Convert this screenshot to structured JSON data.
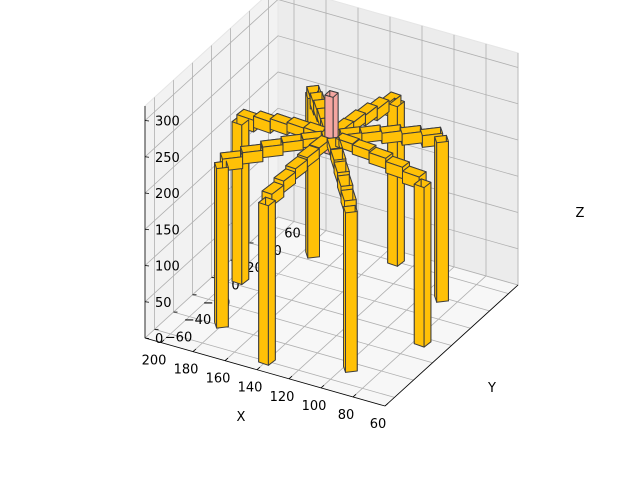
{
  "chart_data": {
    "type": "3d-bar",
    "title": "",
    "xlabel": "X",
    "ylabel": "Y",
    "zlabel": "Z",
    "xlim": [
      60,
      210
    ],
    "ylim": [
      -70,
      70
    ],
    "zlim": [
      0,
      320
    ],
    "xticks": [
      "60",
      "80",
      "100",
      "120",
      "140",
      "160",
      "180",
      "200"
    ],
    "yticks": [
      "−60",
      "−40",
      "−20",
      "0",
      "20",
      "40",
      "60"
    ],
    "zticks": [
      "0",
      "50",
      "100",
      "150",
      "200",
      "250",
      "300"
    ],
    "grid": true,
    "colors": {
      "structure": "#FFC107",
      "center_post": "#F4A6A0",
      "edge": "#3d3d3d",
      "pane": "#f2f2f2"
    },
    "legs": {
      "count": 8,
      "center": [
        135,
        0
      ],
      "foot_radius": 60,
      "knee_radius": 50,
      "leg_height": 220,
      "arm_top": 240,
      "hub_radius": 5
    },
    "center_post": {
      "x": 135,
      "y": 0,
      "z_bottom": 220,
      "z_top": 300
    }
  }
}
